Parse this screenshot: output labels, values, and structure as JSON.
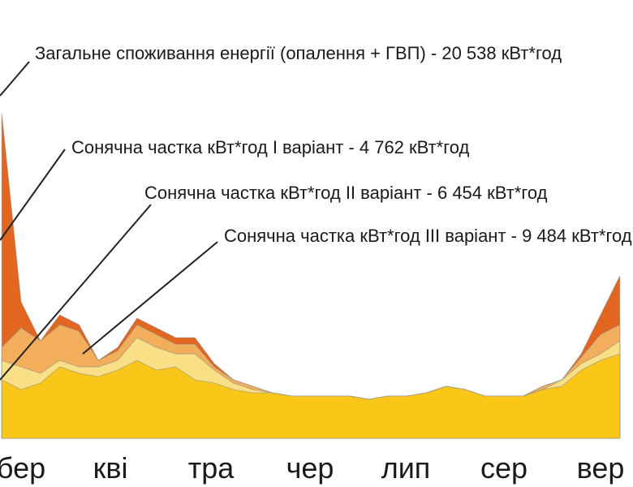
{
  "chart_data": {
    "type": "area",
    "title": "",
    "xlabel": "",
    "ylabel": "",
    "categories": [
      "бер",
      "кві",
      "тра",
      "чер",
      "лип",
      "сер",
      "вер"
    ],
    "grid": false,
    "legend": "callouts",
    "ylim": [
      0,
      100
    ],
    "x": [
      2.8,
      3.0,
      3.2,
      3.4,
      3.6,
      3.8,
      4.0,
      4.2,
      4.4,
      4.6,
      4.8,
      5.0,
      5.2,
      5.4,
      5.6,
      5.8,
      6.0,
      6.2,
      6.4,
      6.6,
      6.8,
      7.0,
      7.2,
      7.4,
      7.6,
      7.8,
      8.0,
      8.2,
      8.4,
      8.6,
      8.8,
      9.0,
      9.2
    ],
    "series": [
      {
        "name": "Загальне споживання енергії (опалення + ГВП) - 20 538 кВт*год",
        "color": "#e2661f",
        "values": [
          100,
          42,
          30,
          38,
          35,
          24,
          28,
          37,
          34,
          31,
          31,
          23,
          18,
          16,
          14,
          13,
          13,
          13,
          13,
          12,
          13,
          13,
          14,
          16,
          15,
          13,
          13,
          13,
          16,
          18,
          26,
          38,
          50
        ]
      },
      {
        "name": "Сонячна частка кВт*год I варіант - 4 762 кВт*год",
        "color": "#f2ae5a",
        "values": [
          28,
          34,
          30,
          35,
          33,
          24,
          27,
          35,
          32,
          29,
          29,
          22,
          18,
          16,
          14,
          13,
          13,
          13,
          13,
          12,
          13,
          13,
          14,
          16,
          15,
          13,
          13,
          13,
          16,
          18,
          25,
          32,
          35
        ]
      },
      {
        "name": "Сонячна частка кВт*год II варіант - 6 454 кВт*год",
        "color": "#f9df85",
        "values": [
          24,
          22,
          20,
          24,
          22,
          22,
          24,
          31,
          28,
          26,
          26,
          21,
          17,
          15,
          14,
          13,
          13,
          13,
          13,
          12,
          13,
          13,
          14,
          16,
          15,
          13,
          13,
          13,
          15,
          18,
          23,
          26,
          30
        ]
      },
      {
        "name": "Сонячна частка кВт*год III варіант - 9 484 кВт*год",
        "color": "#fac718",
        "values": [
          18,
          15,
          17,
          22,
          20,
          19,
          21,
          24,
          21,
          22,
          18,
          17,
          15,
          14,
          14,
          13,
          13,
          13,
          13,
          12,
          13,
          13,
          14,
          16,
          15,
          13,
          13,
          13,
          15,
          16,
          21,
          24,
          26
        ]
      }
    ],
    "annotations": [
      "Загальне споживання енергії (опалення + ГВП) - 20 538 кВт*год",
      "Сонячна частка кВт*год I варіант - 4 762 кВт*год",
      "Сонячна частка кВт*год II варіант - 6 454 кВт*год",
      "Сонячна частка кВт*год III варіант - 9 484 кВт*год"
    ]
  }
}
